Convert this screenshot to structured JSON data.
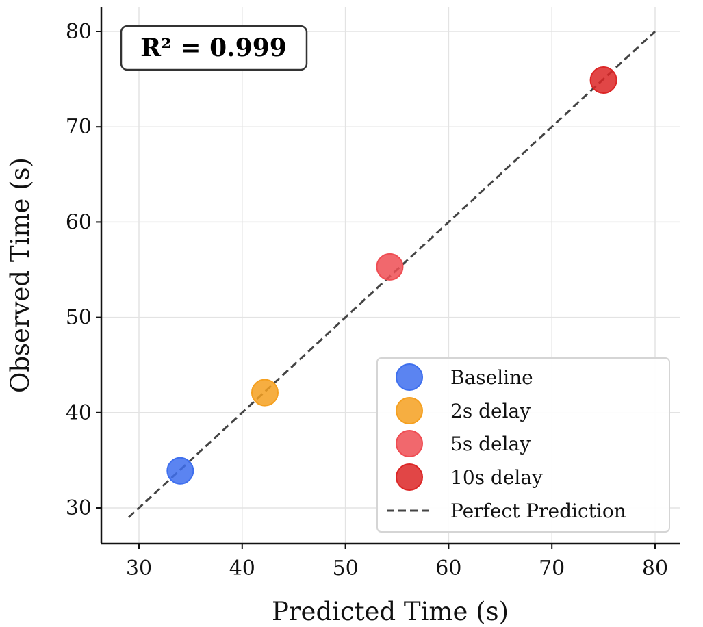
{
  "chart_data": {
    "type": "scatter",
    "xlabel": "Predicted Time (s)",
    "ylabel": "Observed Time (s)",
    "xlim": [
      26.3,
      82.5
    ],
    "ylim": [
      26.3,
      82.5
    ],
    "xticks": [
      30,
      40,
      50,
      60,
      70,
      80
    ],
    "yticks": [
      30,
      40,
      50,
      60,
      70,
      80
    ],
    "grid": true,
    "legend_position": "lower-right",
    "annotation": "R² = 0.999",
    "series": [
      {
        "name": "Baseline",
        "color": "#3e6fee",
        "points": [
          {
            "x": 34.0,
            "y": 33.9
          }
        ]
      },
      {
        "name": "2s delay",
        "color": "#f5a020",
        "points": [
          {
            "x": 42.2,
            "y": 42.1
          }
        ]
      },
      {
        "name": "5s delay",
        "color": "#ef4d53",
        "points": [
          {
            "x": 54.3,
            "y": 55.3
          }
        ]
      },
      {
        "name": "10s delay",
        "color": "#dc2626",
        "points": [
          {
            "x": 75.0,
            "y": 74.9
          }
        ]
      }
    ],
    "reference_line": {
      "name": "Perfect Prediction",
      "x": [
        29,
        80
      ],
      "y": [
        29,
        80
      ],
      "style": "dashed",
      "color": "#444444"
    }
  }
}
